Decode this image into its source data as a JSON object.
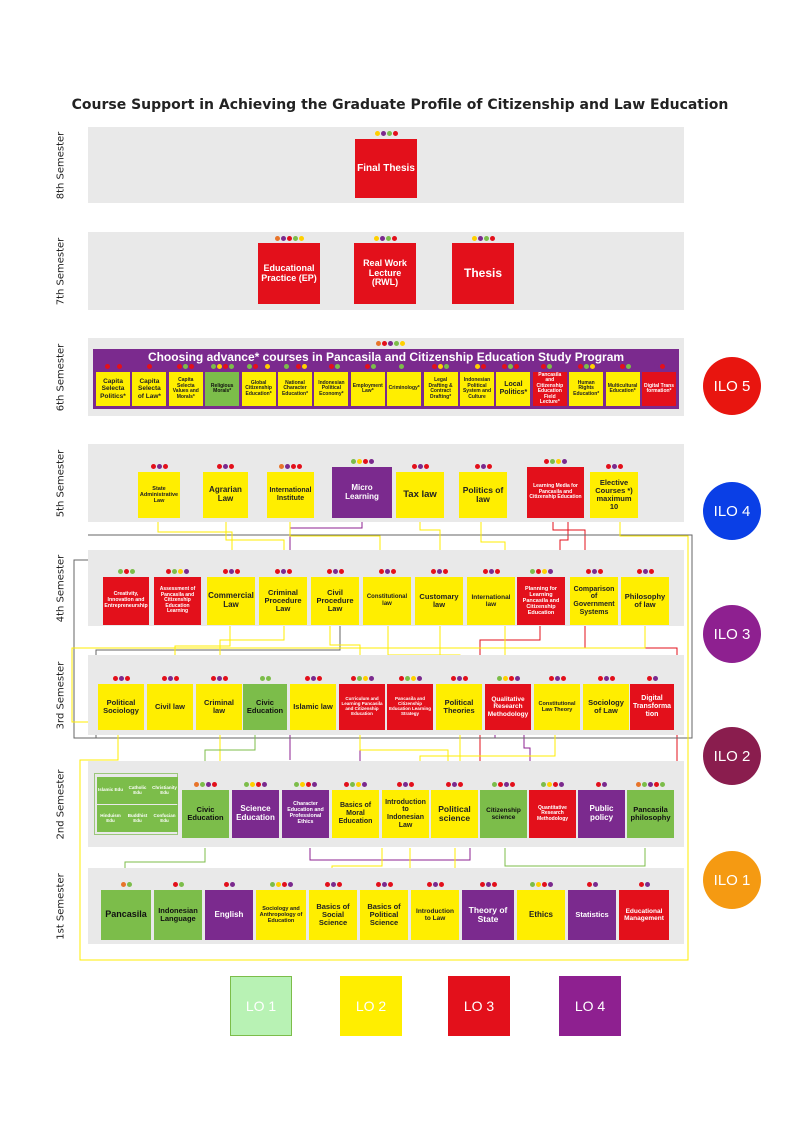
{
  "title": "Course Support in Achieving the Graduate Profile of Citizenship and Law Education",
  "semesters": {
    "s8": "8th Semester",
    "s7": "7th Semester",
    "s6": "6th Semester",
    "s5": "5th Semester",
    "s4": "4th Semester",
    "s3": "3rd Semester",
    "s2": "2nd Semester",
    "s1": "1st Semester"
  },
  "sem8": {
    "final_thesis": "Final Thesis"
  },
  "sem7": {
    "ep": "Educational Practice (EP)",
    "rwl": "Real Work Lecture (RWL)",
    "thesis": "Thesis"
  },
  "sem6": {
    "title": "Choosing advance* courses in Pancasila and Citizenship Education Study Program",
    "courses": [
      "Capita Selecta Politics*",
      "Capita Selecta of Law*",
      "Capita Selecta Values and Morals*",
      "Religious Morals*",
      "Global Citizenship Education*",
      "National Character Education*",
      "Indonesian Political Economy*",
      "Employment Law*",
      "Criminology*",
      "Legal Drafting & Contract Drafting*",
      "Indonesian Political System and Culture",
      "Local Politics*",
      "Pancasila and Citizenship Education Field Lecture*",
      "Human Rights Education*",
      "Multicultural Education*",
      "Digital Trans formation*"
    ]
  },
  "sem5": {
    "courses": [
      "State Administrative Law",
      "Agrarian Law",
      "International Institute",
      "Micro Learning",
      "Tax law",
      "Politics of law",
      "Learning Media for Pancasila and Citizenship Education",
      "Elective Courses *) maximum 10"
    ]
  },
  "sem4": {
    "courses": [
      "Creativity, Innovation and Entrepreneurship",
      "Assessment of Pancasila and Citizenship Education Learning",
      "Commercial Law",
      "Criminal Procedure Law",
      "Civil Procedure Law",
      "Constitutional law",
      "Customary law",
      "International law",
      "Planning for Learning Pancasila and Citizenship Education",
      "Comparison of Government Systems",
      "Philosophy of law"
    ]
  },
  "sem3": {
    "courses": [
      "Political Sociology",
      "Civil law",
      "Criminal law",
      "Civic Education",
      "Islamic law",
      "Curriculum and Learning Pancasila and Citizenship Education",
      "Pancasila and Citizenship Education Learning Strategy",
      "Political Theories",
      "Qualitative Research Methodology",
      "Constitutional Law Theory",
      "Sociology of Law",
      "Digital Transforma tion"
    ]
  },
  "sem2": {
    "religion": [
      "Islamic Edu",
      "Catholic Edu",
      "Christianity Edu",
      "Hinduism Edu",
      "Buddhist Edu",
      "Confucian Edu"
    ],
    "courses": [
      "Civic Education",
      "Science Education",
      "Character Education and Professional Ethics",
      "Basics of Moral Education",
      "Introduction to Indonesian Law",
      "Political science",
      "Citizenship science",
      "Quantitative Research Methodology",
      "Public policy",
      "Pancasila philosophy"
    ]
  },
  "sem1": {
    "courses": [
      "Pancasila",
      "Indonesian Language",
      "English",
      "Sociology and Anthropology of Education",
      "Basics of Social Science",
      "Basics of Political Science",
      "Introduction to Law",
      "Theory of State",
      "Ethics",
      "Statistics",
      "Educational Management"
    ]
  },
  "ilo": [
    "ILO 5",
    "ILO 4",
    "ILO 3",
    "ILO 2",
    "ILO 1"
  ],
  "ilo_colors": [
    "#e8150f",
    "#0a3fe6",
    "#8e2090",
    "#8a1d4e",
    "#f59a12"
  ],
  "lo": [
    "LO 1",
    "LO 2",
    "LO 3",
    "LO 4"
  ],
  "lo_colors": [
    "#b8f2b4",
    "#ffee00",
    "#e3101b",
    "#8e2090"
  ],
  "course_colors": {
    "yellow": "#ffee00",
    "green": "#7cbd4a",
    "red": "#e3101b",
    "purple": "#7b2a8e"
  }
}
